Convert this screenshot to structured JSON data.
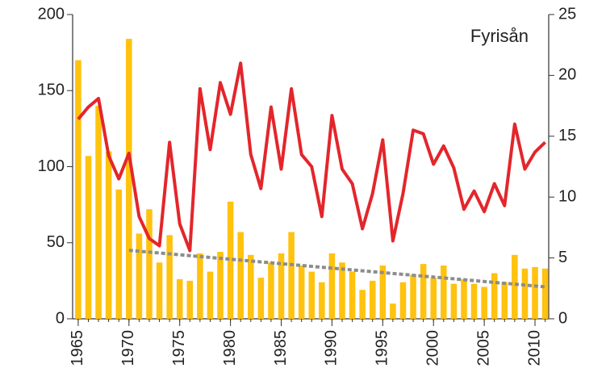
{
  "chart_data": {
    "type": "bar",
    "annotation": "Fyrisån",
    "x": [
      1965,
      1966,
      1967,
      1968,
      1969,
      1970,
      1971,
      1972,
      1973,
      1974,
      1975,
      1976,
      1977,
      1978,
      1979,
      1980,
      1981,
      1982,
      1983,
      1984,
      1985,
      1986,
      1987,
      1988,
      1989,
      1990,
      1991,
      1992,
      1993,
      1994,
      1995,
      1996,
      1997,
      1998,
      1999,
      2000,
      2001,
      2002,
      2003,
      2004,
      2005,
      2006,
      2007,
      2008,
      2009,
      2010,
      2011
    ],
    "series": [
      {
        "type": "bar",
        "color": "#ffc20e",
        "axis": "y",
        "values": [
          170,
          107,
          140,
          110,
          85,
          184,
          56,
          72,
          37,
          55,
          26,
          25,
          43,
          31,
          44,
          77,
          57,
          42,
          27,
          37,
          43,
          57,
          35,
          31,
          24,
          43,
          37,
          31,
          19,
          25,
          35,
          10,
          24,
          29,
          36,
          27,
          35,
          23,
          26,
          23,
          21,
          30,
          24,
          42,
          33,
          34,
          33
        ]
      },
      {
        "type": "line",
        "color": "#e3262b",
        "axis": "y2",
        "values": [
          16.4,
          17.4,
          18.1,
          13.4,
          11.5,
          13.6,
          8.4,
          6.6,
          6.0,
          14.5,
          7.8,
          5.6,
          18.9,
          13.9,
          19.4,
          16.8,
          21.0,
          13.5,
          10.7,
          17.4,
          12.3,
          18.9,
          13.5,
          12.5,
          8.4,
          16.7,
          12.3,
          11.1,
          7.4,
          10.3,
          14.7,
          6.4,
          10.3,
          15.5,
          15.2,
          12.7,
          14.2,
          12.4,
          9.0,
          10.5,
          8.8,
          11.1,
          9.3,
          16.0,
          12.3,
          13.7,
          14.5
        ]
      }
    ],
    "trend": {
      "color": "#8c8c8c",
      "x": [
        1970,
        2011
      ],
      "values": [
        45,
        21
      ]
    },
    "xlim": [
      1964.45,
      2011.35
    ],
    "xticks": [
      1965,
      1970,
      1975,
      1980,
      1985,
      1990,
      1995,
      2000,
      2005,
      2010
    ],
    "ylim": [
      0,
      200
    ],
    "yticks": [
      0,
      50,
      100,
      150,
      200
    ],
    "y2lim": [
      0,
      25
    ],
    "y2ticks": [
      0,
      5,
      10,
      15,
      20,
      25
    ]
  }
}
